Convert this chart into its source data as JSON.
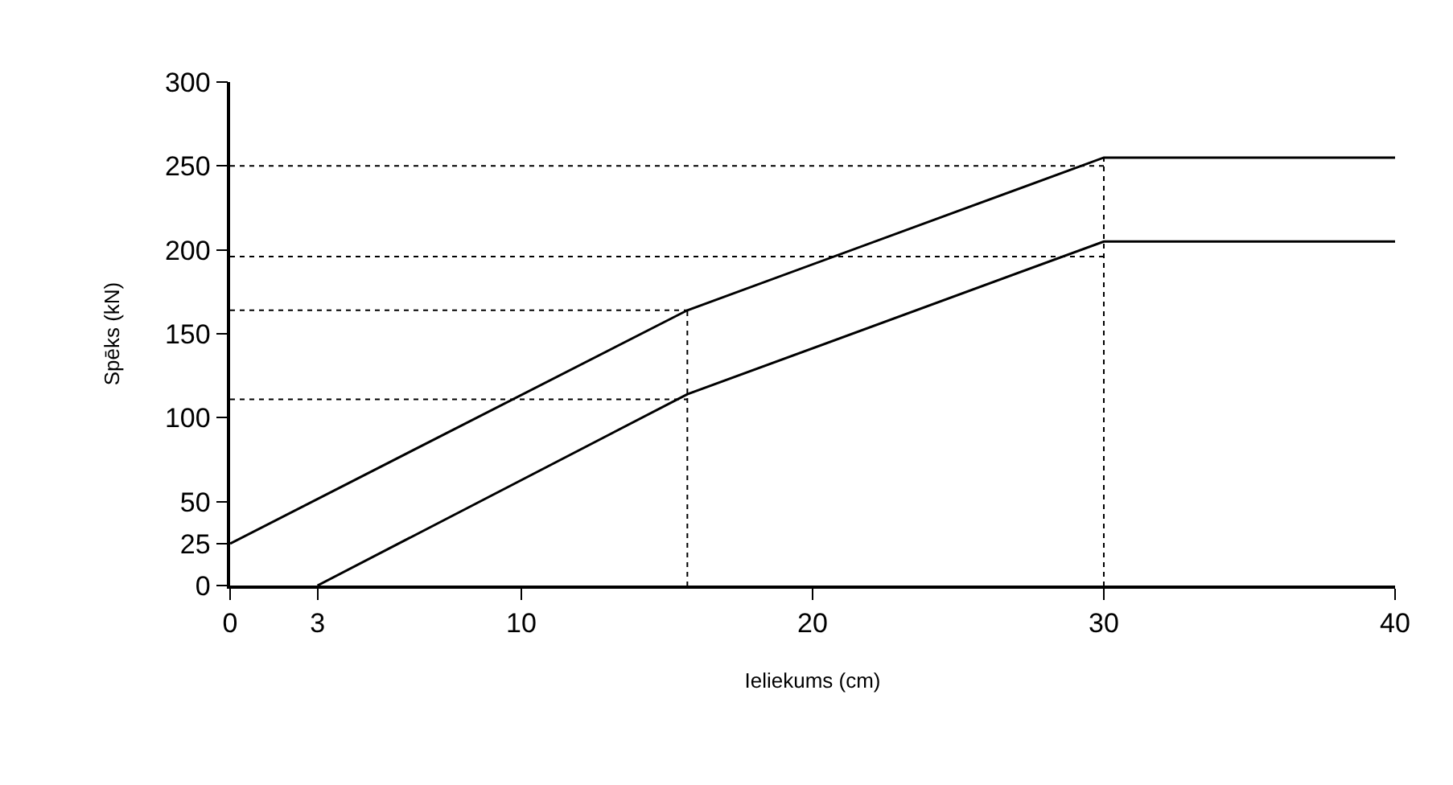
{
  "chart_data": {
    "type": "line",
    "xlabel": "Ieliekums (cm)",
    "ylabel": "Spēks (kN)",
    "series": [
      {
        "color": "#000000",
        "x": [
          0,
          15.7,
          30,
          40
        ],
        "values": [
          25,
          164,
          255,
          255
        ]
      },
      {
        "color": "#000000",
        "x": [
          3,
          15.7,
          30,
          40
        ],
        "values": [
          0,
          114,
          205,
          205
        ]
      }
    ],
    "xlim": [
      0,
      40
    ],
    "ylim": [
      0,
      300
    ],
    "xticks": [
      0,
      3,
      10,
      20,
      30,
      40
    ],
    "yticks": [
      0,
      25,
      50,
      100,
      150,
      200,
      250,
      300
    ],
    "ref_lines": [
      {
        "axis": "y",
        "value": 250,
        "line_style": "dotted",
        "color": "#000000"
      },
      {
        "axis": "y",
        "value": 196,
        "line_style": "dotted",
        "color": "#000000"
      },
      {
        "axis": "y",
        "value": 164,
        "line_style": "dotted",
        "color": "#000000"
      },
      {
        "axis": "y",
        "value": 111,
        "line_style": "dotted",
        "color": "#000000"
      },
      {
        "axis": "x",
        "value": 15.7,
        "line_style": "dotted",
        "color": "#000000"
      },
      {
        "axis": "x",
        "value": 30,
        "line_style": "dotted",
        "color": "#000000"
      }
    ],
    "grid": false,
    "marker": "none",
    "line_style": "solid"
  }
}
